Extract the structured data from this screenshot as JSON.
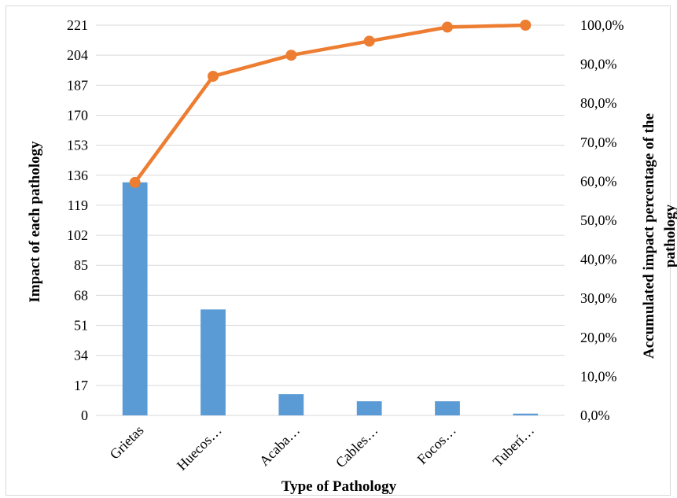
{
  "chart_data": {
    "type": "bar",
    "categories": [
      "Grietas",
      "Huecos…",
      "Acaba…",
      "Cables…",
      "Focos…",
      "Tuberí…"
    ],
    "series": [
      {
        "values": [
          132,
          60,
          12,
          8,
          8,
          1
        ],
        "axis": "left",
        "type": "bar",
        "color": "#5b9bd5"
      },
      {
        "values": [
          59.7,
          86.9,
          92.3,
          95.9,
          99.5,
          100.0
        ],
        "axis": "right",
        "type": "line",
        "color": "#ed7d31"
      }
    ],
    "xlabel": "Type of Pathology",
    "ylabel": "Impact of each pathology",
    "y2label_line1": "Accumulated impact percentage of the",
    "y2label_line2": "pathology",
    "ylim": [
      0,
      221
    ],
    "y2lim": [
      0,
      100
    ],
    "yticks": [
      "0",
      "17",
      "34",
      "51",
      "68",
      "85",
      "102",
      "119",
      "136",
      "153",
      "170",
      "187",
      "204",
      "221"
    ],
    "y2ticks": [
      "0,0%",
      "10,0%",
      "20,0%",
      "30,0%",
      "40,0%",
      "50,0%",
      "60,0%",
      "70,0%",
      "80,0%",
      "90,0%",
      "100,0%"
    ],
    "grid": true,
    "legend": "none"
  }
}
